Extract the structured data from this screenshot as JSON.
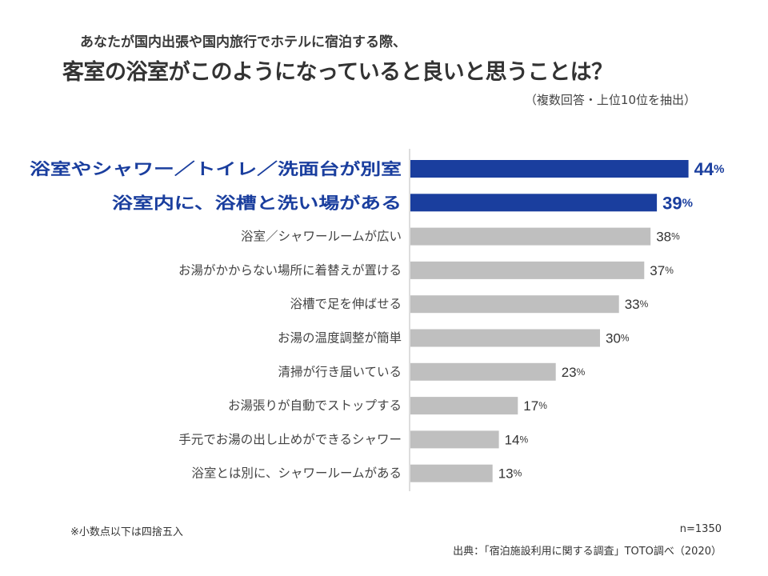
{
  "header": {
    "subtitle": "あなたが国内出張や国内旅行でホテルに宿泊する際、",
    "title": "客室の浴室がこのようになっていると良いと思うことは？",
    "note": "（複数回答・上位10位を抽出）"
  },
  "footer": {
    "footnote": "※小数点以下は四捨五入",
    "sample_size": "n=1350",
    "source": "出典：「宿泊施設利用に関する調査」TOTO調べ（2020）"
  },
  "colors": {
    "highlight": "#1a3e9e",
    "normal": "#bfbfbf",
    "axis": "#bbbbbb"
  },
  "chart_data": {
    "type": "bar",
    "orientation": "horizontal",
    "unit": "%",
    "xlim": [
      0,
      100
    ],
    "categories": [
      "浴室やシャワー／トイレ／洗面台が別室",
      "浴室内に、浴槽と洗い場がある",
      "浴室／シャワールームが広い",
      "お湯がかからない場所に着替えが置ける",
      "浴槽で足を伸ばせる",
      "お湯の温度調整が簡単",
      "清掃が行き届いている",
      "お湯張りが自動でストップする",
      "手元でお湯の出し止めができるシャワー",
      "浴室とは別に、シャワールームがある"
    ],
    "values": [
      44,
      39,
      38,
      37,
      33,
      30,
      23,
      17,
      14,
      13
    ],
    "highlighted": [
      true,
      true,
      false,
      false,
      false,
      false,
      false,
      false,
      false,
      false
    ]
  }
}
